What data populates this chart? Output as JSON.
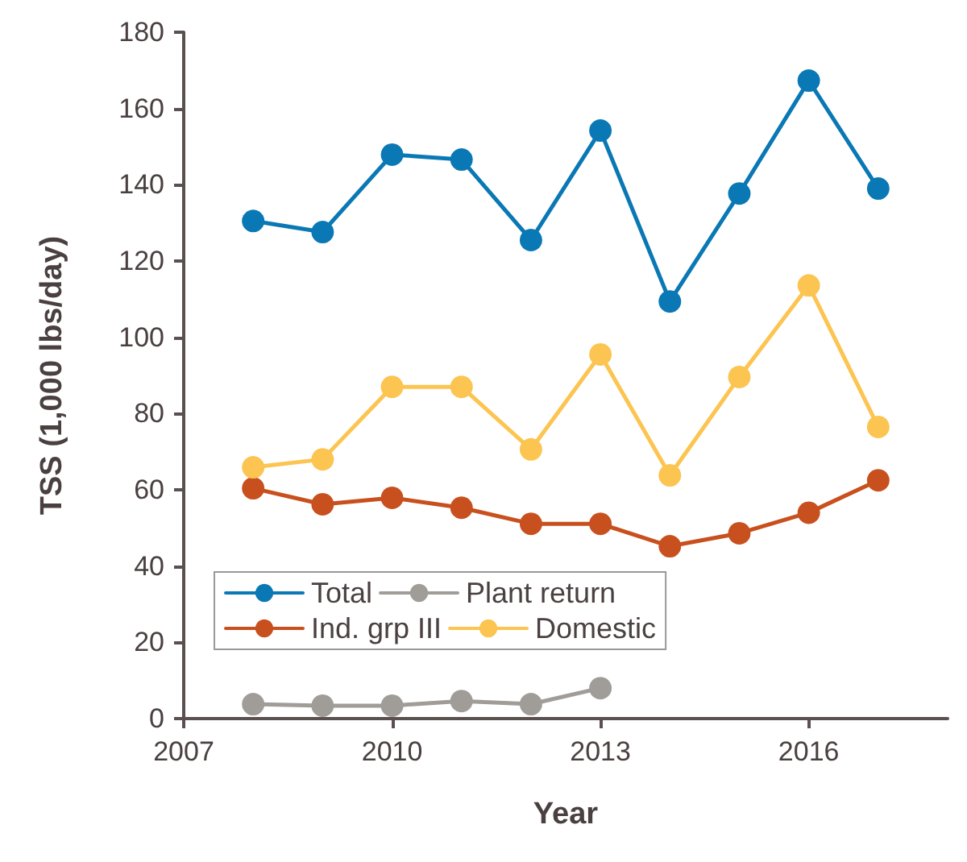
{
  "chart_data": {
    "type": "line",
    "xlabel": "Year",
    "ylabel": "TSS (1,000 lbs/day)",
    "x": [
      2008,
      2009,
      2010,
      2011,
      2012,
      2013,
      2014,
      2015,
      2016,
      2017
    ],
    "series": [
      {
        "name": "Total",
        "color": "#0a78b4",
        "values": [
          130.5,
          127.6,
          147.9,
          146.6,
          125.5,
          154.2,
          109.4,
          137.7,
          167.3,
          139
        ]
      },
      {
        "name": "Ind. grp III",
        "color": "#c8501e",
        "values": [
          60.4,
          56.2,
          57.9,
          55.3,
          51.1,
          51.1,
          45.2,
          48.6,
          54,
          62.5
        ]
      },
      {
        "name": "Plant return",
        "color": "#a09c98",
        "values": [
          3.8,
          3.4,
          3.4,
          4.6,
          3.8,
          8,
          null,
          null,
          null,
          null
        ]
      },
      {
        "name": "Domestic",
        "color": "#fcc450",
        "values": [
          65.9,
          68,
          87,
          87,
          70.6,
          95.5,
          63.8,
          89.6,
          113.6,
          76.5
        ]
      }
    ],
    "xlim": [
      2007,
      2018
    ],
    "xticks": [
      2007,
      2010,
      2013,
      2016
    ],
    "ylim": [
      0,
      180
    ],
    "yticks": [
      0,
      20,
      40,
      60,
      80,
      100,
      120,
      140,
      160,
      180
    ],
    "grid": false,
    "legend": "bottom left",
    "marker": "circle",
    "line_style": "solid"
  }
}
